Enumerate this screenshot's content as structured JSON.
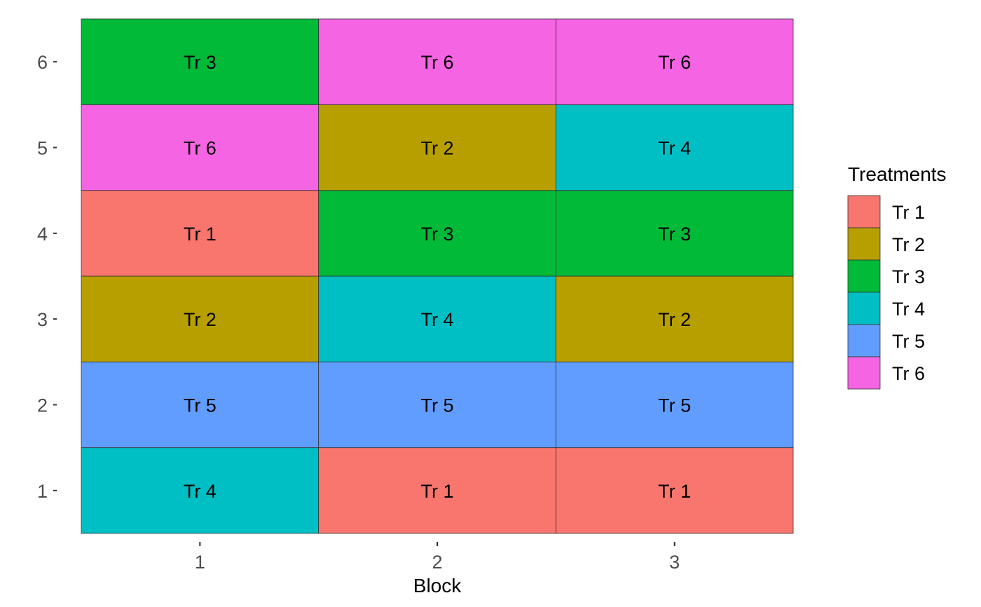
{
  "chart_data": {
    "type": "heatmap",
    "xlabel": "Block",
    "ylabel": "",
    "x_categories": [
      "1",
      "2",
      "3"
    ],
    "y_categories": [
      "1",
      "2",
      "3",
      "4",
      "5",
      "6"
    ],
    "grid": false,
    "legend": {
      "title": "Treatments",
      "placement": "right",
      "entries": [
        {
          "label": "Tr 1",
          "color": "#F8766D"
        },
        {
          "label": "Tr 2",
          "color": "#B79F00"
        },
        {
          "label": "Tr 3",
          "color": "#00BA38"
        },
        {
          "label": "Tr 4",
          "color": "#00BFC4"
        },
        {
          "label": "Tr 5",
          "color": "#619CFF"
        },
        {
          "label": "Tr 6",
          "color": "#F564E3"
        }
      ]
    },
    "cells": [
      {
        "x": "1",
        "y": "1",
        "treatment": "Tr 4"
      },
      {
        "x": "1",
        "y": "2",
        "treatment": "Tr 5"
      },
      {
        "x": "1",
        "y": "3",
        "treatment": "Tr 2"
      },
      {
        "x": "1",
        "y": "4",
        "treatment": "Tr 1"
      },
      {
        "x": "1",
        "y": "5",
        "treatment": "Tr 6"
      },
      {
        "x": "1",
        "y": "6",
        "treatment": "Tr 3"
      },
      {
        "x": "2",
        "y": "1",
        "treatment": "Tr 1"
      },
      {
        "x": "2",
        "y": "2",
        "treatment": "Tr 5"
      },
      {
        "x": "2",
        "y": "3",
        "treatment": "Tr 4"
      },
      {
        "x": "2",
        "y": "4",
        "treatment": "Tr 3"
      },
      {
        "x": "2",
        "y": "5",
        "treatment": "Tr 2"
      },
      {
        "x": "2",
        "y": "6",
        "treatment": "Tr 6"
      },
      {
        "x": "3",
        "y": "1",
        "treatment": "Tr 1"
      },
      {
        "x": "3",
        "y": "2",
        "treatment": "Tr 5"
      },
      {
        "x": "3",
        "y": "3",
        "treatment": "Tr 2"
      },
      {
        "x": "3",
        "y": "4",
        "treatment": "Tr 3"
      },
      {
        "x": "3",
        "y": "5",
        "treatment": "Tr 4"
      },
      {
        "x": "3",
        "y": "6",
        "treatment": "Tr 6"
      }
    ]
  }
}
